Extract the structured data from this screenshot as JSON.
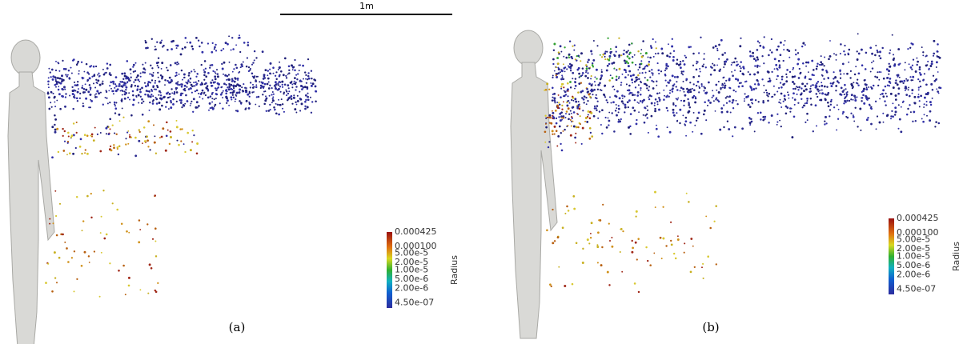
{
  "scale_bar": {
    "label": "1m"
  },
  "panels": [
    {
      "label": "(a)",
      "colorbar": {
        "title": "Radius",
        "ticks": [
          "0.000425",
          "0.000100",
          "5.00e-5",
          "2.00e-5",
          "1.00e-5",
          "5.00e-6",
          "2.00e-6",
          "4.50e-07"
        ]
      }
    },
    {
      "label": "(b)",
      "colorbar": {
        "title": "Radius",
        "ticks": [
          "0.000425",
          "0.000100",
          "5.00e-5",
          "2.00e-5",
          "1.00e-5",
          "5.00e-6",
          "2.00e-6",
          "4.50e-07"
        ]
      }
    }
  ]
}
